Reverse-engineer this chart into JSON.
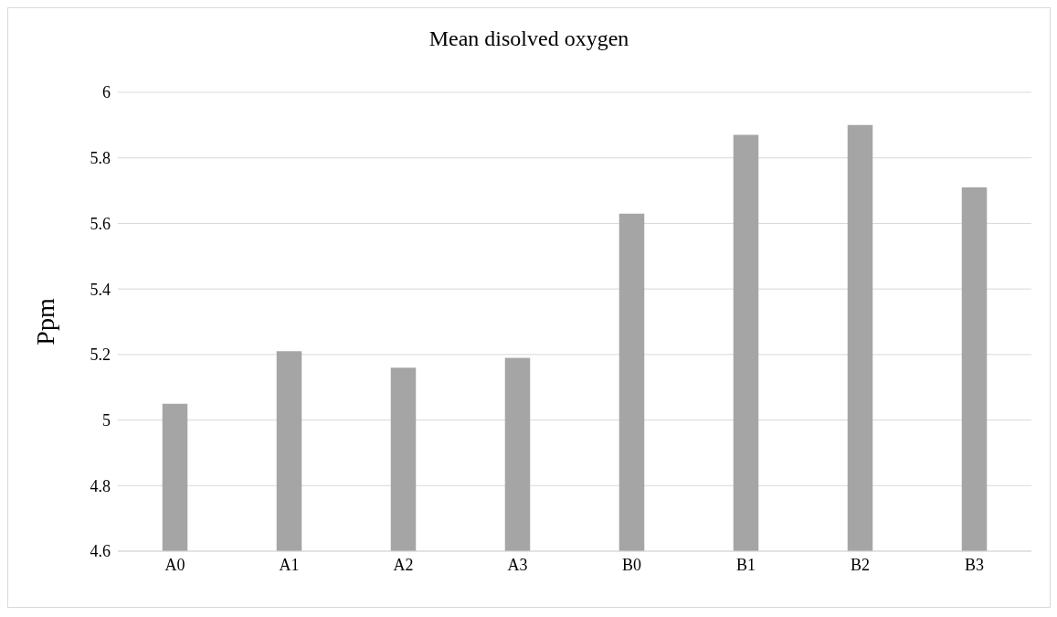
{
  "chart_data": {
    "type": "bar",
    "title": "Mean disolved oxygen",
    "ylabel": "Ppm",
    "categories": [
      "A0",
      "A1",
      "A2",
      "A3",
      "B0",
      "B1",
      "B2",
      "B3"
    ],
    "values": [
      5.05,
      5.21,
      5.16,
      5.19,
      5.63,
      5.87,
      5.9,
      5.71
    ],
    "color": "#a5a5a5",
    "ylim": [
      4.6,
      6
    ],
    "yticks": [
      4.6,
      4.8,
      5,
      5.2,
      5.4,
      5.6,
      5.8,
      6
    ],
    "grid": "y",
    "legend": false
  }
}
